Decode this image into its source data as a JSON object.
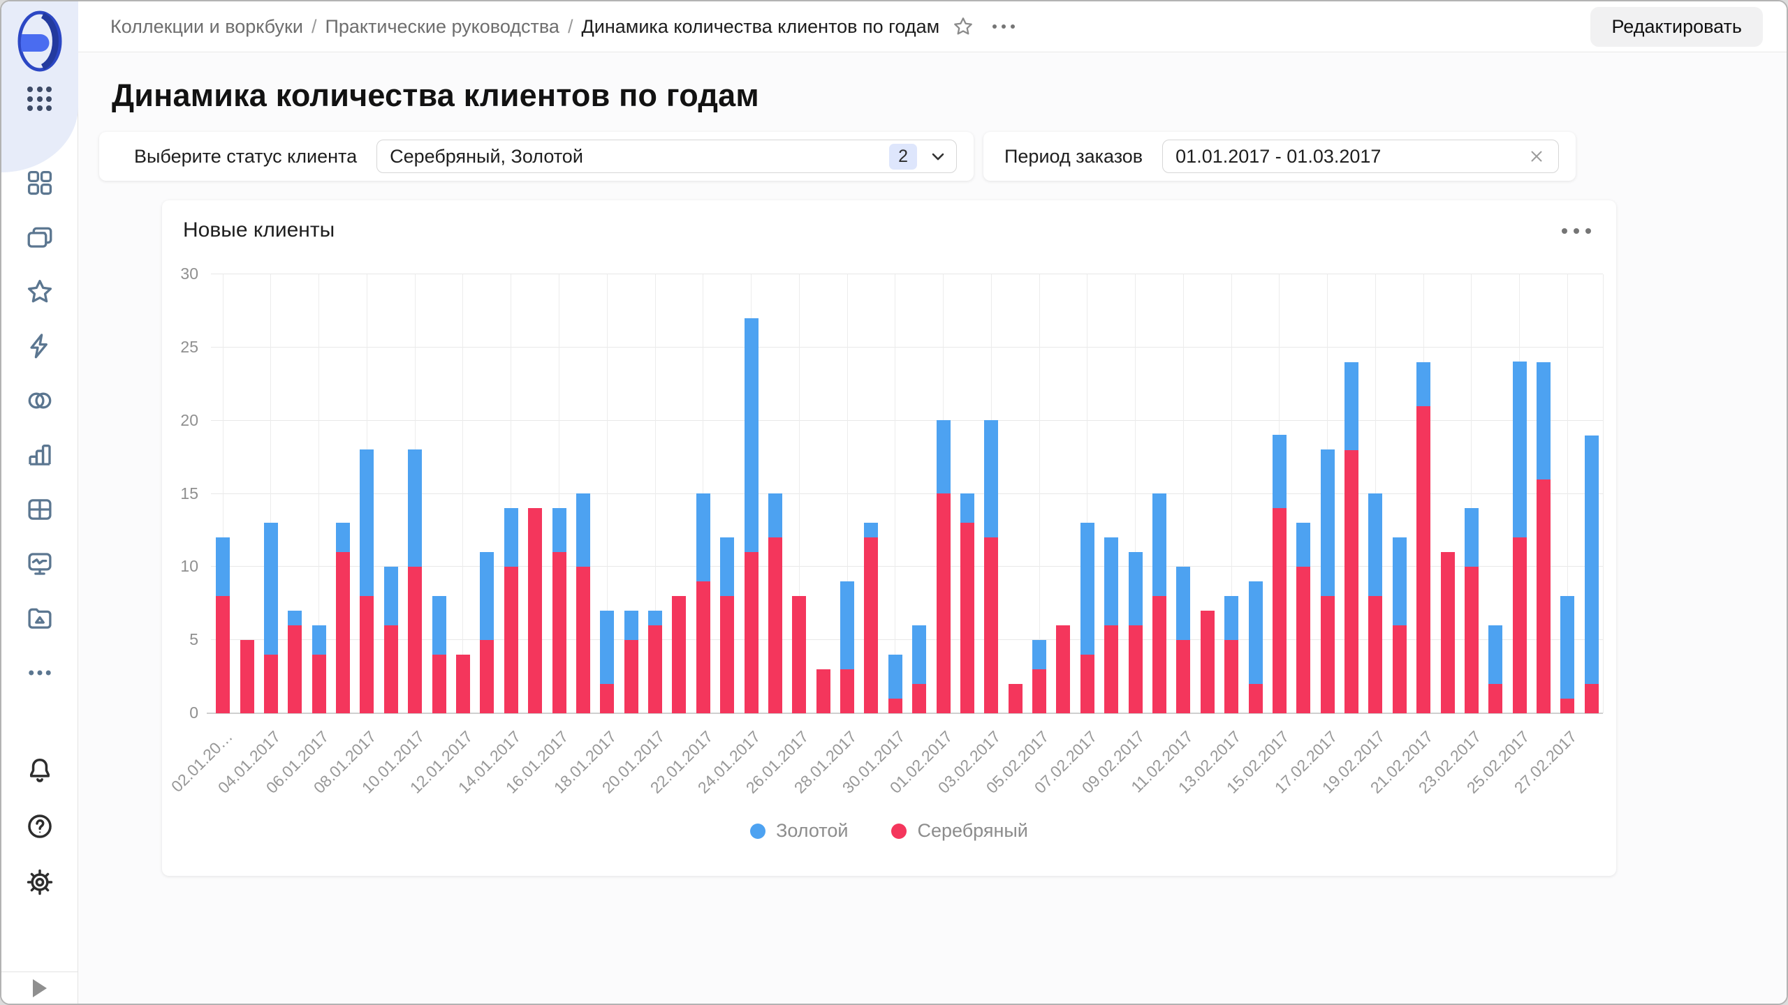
{
  "topbar": {
    "breadcrumb": [
      "Коллекции и воркбуки",
      "Практические руководства",
      "Динамика количества клиентов по годам"
    ],
    "separator": "/",
    "edit_label": "Редактировать"
  },
  "page": {
    "title": "Динамика количества клиентов по годам"
  },
  "filters": {
    "status": {
      "label": "Выберите статус клиента",
      "value": "Серебряный, Золотой",
      "count": "2"
    },
    "period": {
      "label": "Период заказов",
      "value": "01.01.2017 - 01.03.2017"
    }
  },
  "chart_card": {
    "title": "Новые клиенты"
  },
  "sidebar": {
    "icon_names": [
      "datalens-logo",
      "apps-grid",
      "objects-grid",
      "collections",
      "favorites",
      "quick-actions",
      "connections",
      "charts",
      "tables",
      "dashboards",
      "storage",
      "more",
      "notifications",
      "help",
      "settings",
      "expand-panel"
    ]
  },
  "colors": {
    "gold_series": "#4da2f1",
    "silver_series": "#f4365c",
    "sidebar_icon": "#5b7690",
    "badge_bg": "#dee6fc",
    "sidebar_top_bg": "#e7ecf9"
  },
  "chart_data": {
    "type": "bar",
    "stacking": "normal",
    "title": "Новые клиенты",
    "xlabel": "",
    "ylabel": "",
    "ylim": [
      0,
      30
    ],
    "yticks": [
      0,
      5,
      10,
      15,
      20,
      25,
      30
    ],
    "grid": true,
    "legend_position": "bottom-center",
    "x": [
      "02.01.2017",
      "03.01.2017",
      "04.01.2017",
      "05.01.2017",
      "06.01.2017",
      "07.01.2017",
      "08.01.2017",
      "09.01.2017",
      "10.01.2017",
      "11.01.2017",
      "12.01.2017",
      "13.01.2017",
      "14.01.2017",
      "15.01.2017",
      "16.01.2017",
      "17.01.2017",
      "18.01.2017",
      "19.01.2017",
      "20.01.2017",
      "21.01.2017",
      "22.01.2017",
      "23.01.2017",
      "24.01.2017",
      "25.01.2017",
      "26.01.2017",
      "27.01.2017",
      "28.01.2017",
      "29.01.2017",
      "30.01.2017",
      "31.01.2017",
      "01.02.2017",
      "02.02.2017",
      "03.02.2017",
      "04.02.2017",
      "05.02.2017",
      "06.02.2017",
      "07.02.2017",
      "08.02.2017",
      "09.02.2017",
      "10.02.2017",
      "11.02.2017",
      "12.02.2017",
      "13.02.2017",
      "14.02.2017",
      "15.02.2017",
      "16.02.2017",
      "17.02.2017",
      "18.02.2017",
      "19.02.2017",
      "20.02.2017",
      "21.02.2017",
      "22.02.2017",
      "23.02.2017",
      "24.02.2017",
      "25.02.2017",
      "26.02.2017",
      "27.02.2017",
      "28.02.2017"
    ],
    "x_tick_labels": [
      "02.01.20…",
      "04.01.2017",
      "06.01.2017",
      "08.01.2017",
      "10.01.2017",
      "12.01.2017",
      "14.01.2017",
      "16.01.2017",
      "18.01.2017",
      "20.01.2017",
      "22.01.2017",
      "24.01.2017",
      "26.01.2017",
      "28.01.2017",
      "30.01.2017",
      "01.02.2017",
      "03.02.2017",
      "05.02.2017",
      "07.02.2017",
      "09.02.2017",
      "11.02.2017",
      "13.02.2017",
      "15.02.2017",
      "17.02.2017",
      "19.02.2017",
      "21.02.2017",
      "23.02.2017",
      "25.02.2017",
      "27.02.2017"
    ],
    "series": [
      {
        "name": "Золотой",
        "color": "#4da2f1",
        "values": [
          4,
          0,
          9,
          1,
          2,
          2,
          10,
          4,
          8,
          4,
          0,
          6,
          4,
          0,
          3,
          5,
          5,
          2,
          1,
          0,
          6,
          4,
          16,
          3,
          0,
          0,
          6,
          1,
          3,
          4,
          5,
          2,
          8,
          0,
          2,
          0,
          9,
          6,
          5,
          7,
          5,
          0,
          3,
          7,
          5,
          3,
          10,
          6,
          7,
          6,
          3,
          0,
          4,
          4,
          12,
          8,
          7,
          17
        ]
      },
      {
        "name": "Серебряный",
        "color": "#f4365c",
        "values": [
          8,
          5,
          4,
          6,
          4,
          11,
          8,
          6,
          10,
          4,
          4,
          5,
          10,
          14,
          11,
          10,
          2,
          5,
          6,
          8,
          9,
          8,
          11,
          12,
          8,
          3,
          3,
          12,
          1,
          2,
          15,
          13,
          12,
          2,
          3,
          6,
          4,
          6,
          6,
          8,
          5,
          7,
          5,
          2,
          14,
          10,
          8,
          18,
          8,
          6,
          21,
          11,
          10,
          2,
          12,
          16,
          1,
          2
        ]
      }
    ]
  }
}
